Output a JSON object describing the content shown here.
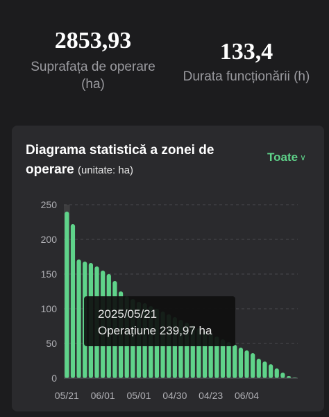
{
  "stats": {
    "area": {
      "value": "2853,93",
      "label_line1": "Suprafața de operare",
      "label_line2": "(ha)"
    },
    "duration": {
      "value": "133,4",
      "label": "Durata funcționării (h)"
    }
  },
  "card": {
    "title_line1": "Diagrama statistică a zonei de",
    "title_line2": "operare",
    "unit": "(unitate: ha)",
    "filter_label": "Toate",
    "filter_icon": "chevron-down-icon"
  },
  "tooltip": {
    "date": "2025/05/21",
    "label": "Operațiune 239,97 ha"
  },
  "colors": {
    "bar": "#5fd38a",
    "accent": "#5fd38a",
    "highlight": "#555555"
  },
  "chart_data": {
    "type": "bar",
    "title": "Diagrama statistică a zonei de operare",
    "ylabel": "",
    "xlabel": "",
    "ylim": [
      0,
      250
    ],
    "y_ticks": [
      0,
      50,
      100,
      150,
      200,
      250
    ],
    "x_tick_labels": [
      "05/21",
      "06/01",
      "05/01",
      "04/30",
      "04/23",
      "06/04"
    ],
    "x_tick_indices": [
      0,
      6,
      12,
      18,
      24,
      30
    ],
    "grid": true,
    "highlight_index": 0,
    "values": [
      239.97,
      222,
      171,
      168,
      166,
      161,
      155,
      150,
      140,
      125,
      118,
      114,
      110,
      108,
      104,
      100,
      96,
      92,
      88,
      84,
      80,
      76,
      72,
      68,
      64,
      60,
      56,
      52,
      48,
      44,
      40,
      36,
      28,
      24,
      20,
      14,
      8,
      3,
      1
    ]
  }
}
